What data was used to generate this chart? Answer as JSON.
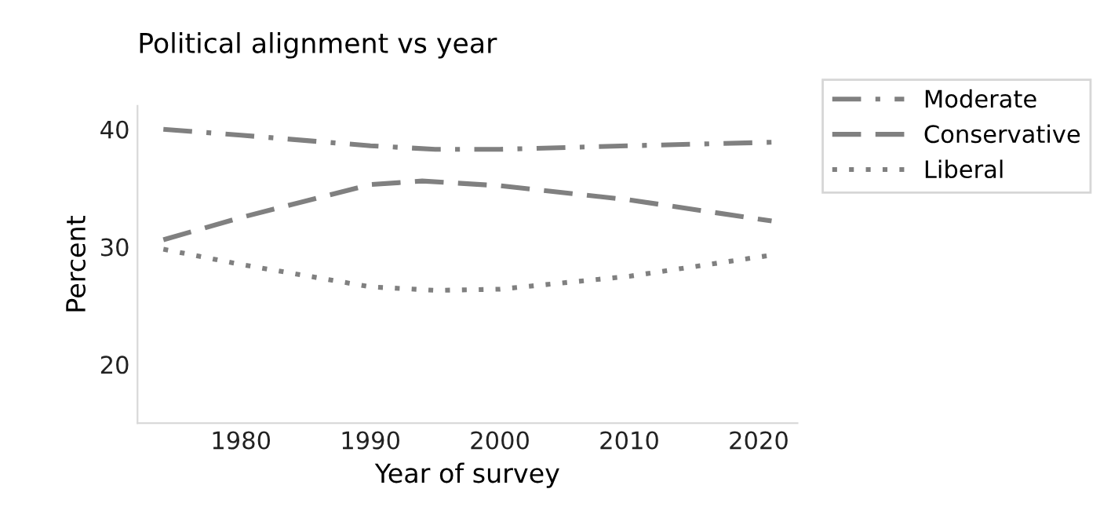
{
  "chart_data": {
    "type": "line",
    "title": "Political alignment vs year",
    "xlabel": "Year of survey",
    "ylabel": "Percent",
    "xlim": [
      1972,
      2023
    ],
    "xticks": [
      1980,
      1990,
      2000,
      2010,
      2020
    ],
    "ylim": [
      15,
      42
    ],
    "yticks": [
      20,
      30,
      40
    ],
    "grid": false,
    "legend": "right",
    "marker": "none",
    "series": [
      {
        "name": "Moderate",
        "color": "#808080",
        "line_style": "dashdot",
        "x": [
          1974,
          1980,
          1990,
          1995,
          2000,
          2010,
          2021
        ],
        "values": [
          40,
          39.5,
          38.6,
          38.3,
          38.3,
          38.6,
          38.9
        ]
      },
      {
        "name": "Conservative",
        "color": "#808080",
        "line_style": "dashed",
        "x": [
          1974,
          1980,
          1990,
          1994,
          2000,
          2010,
          2021
        ],
        "values": [
          30.6,
          32.5,
          35.3,
          35.6,
          35.2,
          34,
          32.2
        ]
      },
      {
        "name": "Liberal",
        "color": "#808080",
        "line_style": "dotted",
        "x": [
          1974,
          1980,
          1990,
          1995,
          2000,
          2010,
          2021
        ],
        "values": [
          29.8,
          28.5,
          26.6,
          26.3,
          26.4,
          27.5,
          29.3
        ]
      }
    ]
  }
}
